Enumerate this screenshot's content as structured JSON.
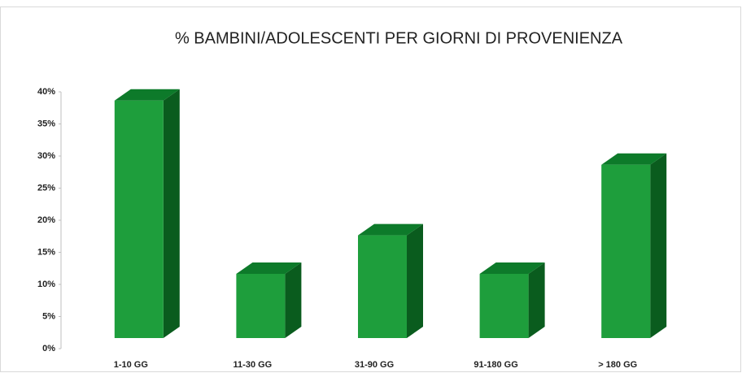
{
  "chart_data": {
    "type": "bar3d",
    "title": "% BAMBINI/ADOLESCENTI PER GIORNI DI PROVENIENZA",
    "categories": [
      "1-10 GG",
      "11-30 GG",
      "31-90 GG",
      "91-180 GG",
      "> 180 GG"
    ],
    "values": [
      37,
      10,
      16,
      10,
      27
    ],
    "color": "#1e9e3c",
    "ylim": [
      0,
      40
    ],
    "yticks": [
      {
        "value": 0,
        "label": "0%"
      },
      {
        "value": 5,
        "label": "5%"
      },
      {
        "value": 10,
        "label": "10%"
      },
      {
        "value": 15,
        "label": "15%"
      },
      {
        "value": 20,
        "label": "20%"
      },
      {
        "value": 25,
        "label": "25%"
      },
      {
        "value": 30,
        "label": "30%"
      },
      {
        "value": 35,
        "label": "35%"
      },
      {
        "value": 40,
        "label": "40%"
      }
    ]
  }
}
